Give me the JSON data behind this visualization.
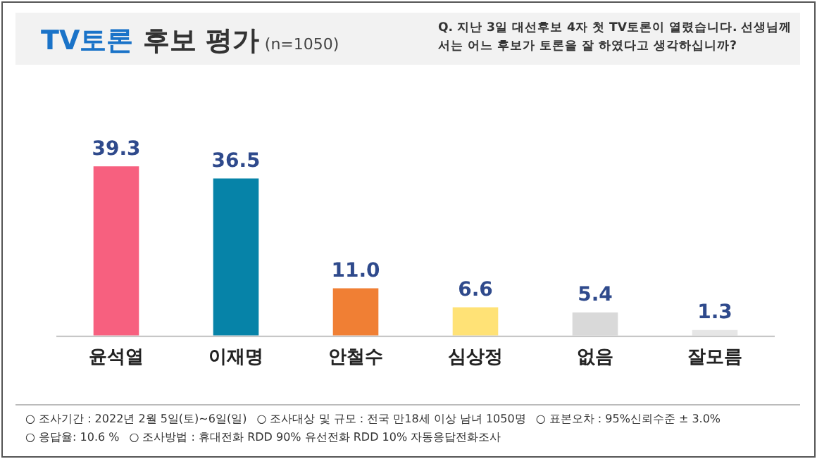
{
  "chart_data": {
    "type": "bar",
    "title": "TV토론 후보 평가",
    "subtitle": "(n=1050)",
    "categories": [
      "윤석열",
      "이재명",
      "안철수",
      "심상정",
      "없음",
      "잘모름"
    ],
    "values": [
      39.3,
      36.5,
      11.0,
      6.6,
      5.4,
      1.3
    ],
    "colors": [
      "#f7607f",
      "#0683a8",
      "#f07f34",
      "#ffe276",
      "#d9d9d9",
      "#e6e6e6"
    ],
    "value_labels": [
      "39.3",
      "36.5",
      "11.0",
      "6.6",
      "5.4",
      "1.3"
    ],
    "tick_labels": "x",
    "grid": false,
    "legend": false,
    "annotations": [
      "Q. 지난 3일 대선후보 4자 첫 TV토론이 열렸습니다. 선생님께서는 어느 후보가 토론을 잘 하였다고 생각하십니까?",
      "○ 조사기간 : 2022년 2월 5일(토)~6일(일)",
      "○ 조사대상 및 규모 : 전국 만18세 이상 남녀 1050명",
      "○ 표본오차 : 95%신뢰수준 ± 3.0%",
      "○ 응답율: 10.6 %",
      "○ 조사방법 : 휴대전화 RDD 90% 유선전화 RDD 10% 자동응답전화조사"
    ]
  }
}
